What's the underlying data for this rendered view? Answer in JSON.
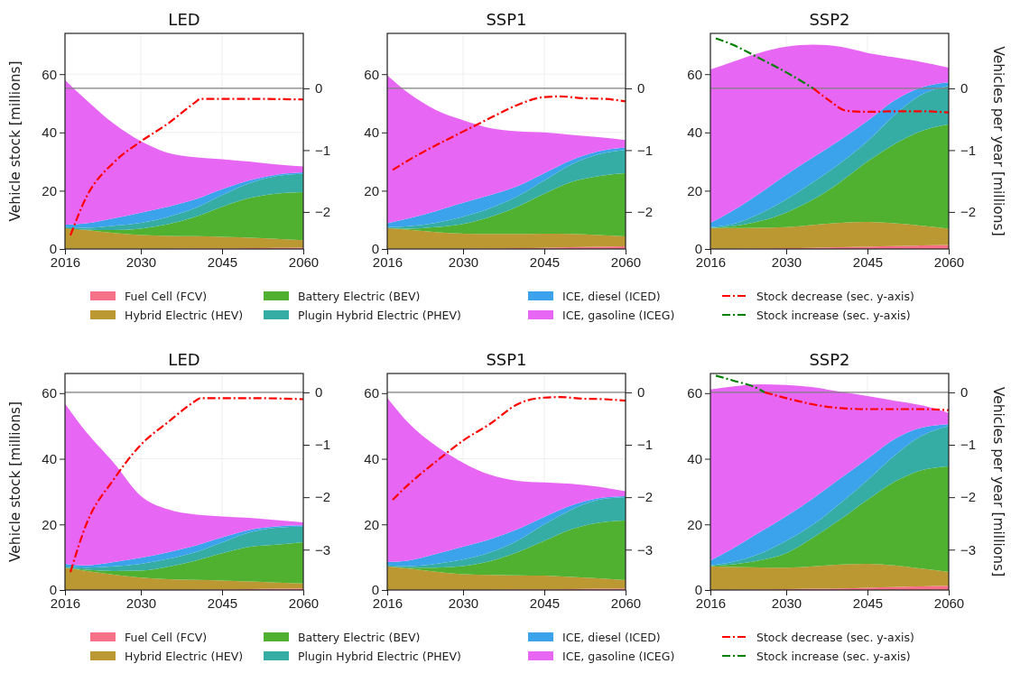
{
  "chart_data": [
    {
      "type": "area",
      "title": "LED",
      "ylabel": "Vehicle stock [millions]",
      "stacked": true,
      "grid": true,
      "line_style": "dashdot",
      "xlim": [
        2016,
        2060
      ],
      "xticks": [
        2016,
        2030,
        2045,
        2060
      ],
      "ylim": [
        0,
        74
      ],
      "yticks": [
        0,
        20,
        40,
        60
      ],
      "y2lim": [
        -2.6,
        0.89
      ],
      "y2ticks": [
        0,
        -1,
        -2
      ],
      "ref_lines": [
        {
          "axis": "y2",
          "value": 0,
          "color": "#808080"
        }
      ],
      "x": [
        2016,
        2020,
        2025,
        2030,
        2035,
        2040,
        2045,
        2050,
        2055,
        2060
      ],
      "series": [
        {
          "color": "#f77189",
          "values": [
            0.1,
            0.1,
            0.1,
            0.1,
            0.1,
            0.2,
            0.2,
            0.3,
            0.4,
            0.5
          ]
        },
        {
          "color": "#bb9832",
          "values": [
            7.1,
            6.4,
            5.4,
            4.7,
            4.4,
            4.2,
            4.0,
            3.6,
            3.1,
            2.5
          ]
        },
        {
          "color": "#50b131",
          "values": [
            0,
            0.1,
            1.0,
            2.2,
            4.0,
            6.6,
            10.3,
            13.6,
            15.5,
            16.5
          ]
        },
        {
          "color": "#36ada4",
          "values": [
            0.3,
            0.7,
            1.5,
            2.0,
            2.5,
            3.0,
            4.0,
            5.0,
            6.0,
            6.3
          ]
        },
        {
          "color": "#3ba3ec",
          "values": [
            0.8,
            1.5,
            2.5,
            3.5,
            3.5,
            3.0,
            2.0,
            1.0,
            0.5,
            0.5
          ]
        },
        {
          "color": "#e866f4",
          "values": [
            49.7,
            42.2,
            32.5,
            24.5,
            18.5,
            14.5,
            10.3,
            6.5,
            3.5,
            2.0
          ]
        },
        {
          "type": "line",
          "axis": "y2",
          "color": "#ff0000",
          "x": [
            2017,
            2020,
            2025,
            2030,
            2035,
            2040,
            2041,
            2050,
            2060
          ],
          "values": [
            -2.38,
            -1.75,
            -1.2,
            -0.86,
            -0.57,
            -0.23,
            -0.17,
            -0.17,
            -0.18
          ]
        }
      ]
    },
    {
      "type": "area",
      "title": "SSP1",
      "stacked": true,
      "grid": true,
      "line_style": "dashdot",
      "xlim": [
        2016,
        2060
      ],
      "xticks": [
        2016,
        2030,
        2045,
        2060
      ],
      "ylim": [
        0,
        74
      ],
      "yticks": [
        0,
        20,
        40,
        60
      ],
      "y2lim": [
        -2.6,
        0.89
      ],
      "y2ticks": [
        0,
        -1,
        -2
      ],
      "ref_lines": [
        {
          "axis": "y2",
          "value": 0,
          "color": "#808080"
        }
      ],
      "x": [
        2016,
        2020,
        2025,
        2030,
        2035,
        2040,
        2045,
        2050,
        2055,
        2060
      ],
      "series": [
        {
          "color": "#f77189",
          "values": [
            0.1,
            0.1,
            0.1,
            0.1,
            0.2,
            0.3,
            0.4,
            0.6,
            0.8,
            0.9
          ]
        },
        {
          "color": "#bb9832",
          "values": [
            7.1,
            6.5,
            5.7,
            5.2,
            5.0,
            4.9,
            4.9,
            4.6,
            4.0,
            3.4
          ]
        },
        {
          "color": "#50b131",
          "values": [
            0,
            0.4,
            1.7,
            3.3,
            5.8,
            9.3,
            13.7,
            17.8,
            20.2,
            21.7
          ]
        },
        {
          "color": "#36ada4",
          "values": [
            0.3,
            0.8,
            1.5,
            2.5,
            3.0,
            3.5,
            4.5,
            6.0,
            7.5,
            8.0
          ]
        },
        {
          "color": "#3ba3ec",
          "values": [
            1.3,
            2.7,
            4.0,
            4.8,
            4.5,
            3.5,
            2.5,
            1.5,
            1.0,
            0.8
          ]
        },
        {
          "color": "#e866f4",
          "values": [
            50.8,
            42.9,
            34.7,
            28.3,
            23.0,
            18.9,
            14.0,
            8.7,
            4.9,
            2.6
          ]
        },
        {
          "type": "line",
          "axis": "y2",
          "color": "#ff0000",
          "x": [
            2017,
            2020,
            2025,
            2030,
            2035,
            2040,
            2045,
            2048,
            2052,
            2056,
            2060
          ],
          "values": [
            -1.32,
            -1.16,
            -0.92,
            -0.7,
            -0.48,
            -0.27,
            -0.14,
            -0.13,
            -0.16,
            -0.17,
            -0.21
          ]
        }
      ]
    },
    {
      "type": "area",
      "title": "SSP2",
      "y2label": "Vehicles per year [millions]",
      "stacked": true,
      "grid": true,
      "legend": "bottom",
      "line_style": "dashdot",
      "xlim": [
        2016,
        2060
      ],
      "xticks": [
        2016,
        2030,
        2045,
        2060
      ],
      "ylim": [
        0,
        74
      ],
      "yticks": [
        0,
        20,
        40,
        60
      ],
      "y2lim": [
        -2.6,
        0.89
      ],
      "y2ticks": [
        0,
        -1,
        -2
      ],
      "ref_lines": [
        {
          "axis": "y2",
          "value": 0,
          "color": "#808080"
        }
      ],
      "x": [
        2016,
        2020,
        2025,
        2030,
        2035,
        2040,
        2045,
        2050,
        2055,
        2060
      ],
      "series": [
        {
          "name": "Fuel Cell (FCV)",
          "color": "#f77189",
          "values": [
            0.1,
            0.1,
            0.2,
            0.3,
            0.4,
            0.6,
            0.8,
            1.0,
            1.2,
            1.4
          ]
        },
        {
          "name": "Hybrid Electric (HEV)",
          "color": "#bb9832",
          "values": [
            7.1,
            7.1,
            7.1,
            7.2,
            7.9,
            8.4,
            8.5,
            7.8,
            6.8,
            5.6
          ]
        },
        {
          "name": "Battery Electric (BEV)",
          "color": "#50b131",
          "values": [
            0,
            0.6,
            2.2,
            5.0,
            8.7,
            14.0,
            20.7,
            27.2,
            32.5,
            35.8
          ]
        },
        {
          "name": "Plugin Hybrid Electric (PHEV)",
          "color": "#36ada4",
          "values": [
            0.3,
            0.7,
            2.5,
            4.5,
            6.0,
            6.5,
            7.0,
            10.0,
            12.5,
            13.2
          ]
        },
        {
          "name": "ICE, diesel (ICED)",
          "color": "#3ba3ec",
          "values": [
            1.5,
            4.5,
            7.0,
            8.5,
            8.5,
            8.0,
            7.0,
            5.0,
            2.5,
            1.2
          ]
        },
        {
          "name": "ICE, gasoline (ICEG)",
          "color": "#e866f4",
          "values": [
            52.6,
            51.2,
            48.3,
            43.9,
            38.6,
            31.9,
            23.3,
            14.8,
            8.7,
            5.0
          ]
        },
        {
          "name": "Stock decrease (sec. y-axis)",
          "type": "line",
          "axis": "y2",
          "color": "#ff0000",
          "x": [
            2035,
            2038,
            2041,
            2045,
            2050,
            2055,
            2060
          ],
          "values": [
            0,
            -0.2,
            -0.36,
            -0.38,
            -0.37,
            -0.37,
            -0.39
          ]
        },
        {
          "name": "Stock increase (sec. y-axis)",
          "type": "line",
          "axis": "y2",
          "color": "#008000",
          "x": [
            2017,
            2020,
            2025,
            2030,
            2035
          ],
          "values": [
            0.81,
            0.71,
            0.49,
            0.26,
            0
          ]
        }
      ]
    },
    {
      "type": "area",
      "title": "LED",
      "ylabel": "Vehicle stock [millions]",
      "stacked": true,
      "grid": true,
      "line_style": "dashdot",
      "xlim": [
        2016,
        2060
      ],
      "xticks": [
        2016,
        2030,
        2045,
        2060
      ],
      "ylim": [
        0,
        66
      ],
      "yticks": [
        0,
        20,
        40,
        60
      ],
      "y2lim": [
        -3.77,
        0.36
      ],
      "y2ticks": [
        0,
        -1,
        -2,
        -3
      ],
      "ref_lines": [
        {
          "axis": "y2",
          "value": 0,
          "color": "#808080"
        }
      ],
      "x": [
        2016,
        2020,
        2025,
        2030,
        2035,
        2040,
        2045,
        2050,
        2055,
        2060
      ],
      "series": [
        {
          "color": "#f77189",
          "values": [
            0.1,
            0.1,
            0.1,
            0.1,
            0.1,
            0.1,
            0.2,
            0.3,
            0.4,
            0.5
          ]
        },
        {
          "color": "#bb9832",
          "values": [
            6.7,
            5.7,
            4.6,
            3.7,
            3.2,
            3.0,
            2.7,
            2.3,
            1.9,
            1.5
          ]
        },
        {
          "color": "#50b131",
          "values": [
            0,
            0.4,
            1.1,
            2.1,
            3.8,
            5.8,
            8.3,
            10.5,
            11.5,
            12.6
          ]
        },
        {
          "color": "#36ada4",
          "values": [
            0.4,
            0.6,
            1.4,
            2.1,
            2.4,
            2.6,
            3.3,
            4.4,
            5.2,
            4.7
          ]
        },
        {
          "color": "#3ba3ec",
          "values": [
            0.8,
            0.7,
            1.3,
            1.8,
            2.0,
            2.0,
            1.5,
            0.8,
            0.4,
            0.4
          ]
        },
        {
          "color": "#e866f4",
          "values": [
            48.8,
            40.5,
            30.3,
            18.9,
            13.1,
            9.5,
            6.4,
            3.7,
            1.9,
            0.9
          ]
        },
        {
          "type": "line",
          "axis": "y2",
          "color": "#ff0000",
          "x": [
            2017,
            2020,
            2025,
            2030,
            2035,
            2040,
            2041,
            2050,
            2060
          ],
          "values": [
            -3.43,
            -2.5,
            -1.66,
            -1.0,
            -0.57,
            -0.17,
            -0.11,
            -0.11,
            -0.13
          ]
        }
      ]
    },
    {
      "type": "area",
      "title": "SSP1",
      "stacked": true,
      "grid": true,
      "line_style": "dashdot",
      "xlim": [
        2016,
        2060
      ],
      "xticks": [
        2016,
        2030,
        2045,
        2060
      ],
      "ylim": [
        0,
        66
      ],
      "yticks": [
        0,
        20,
        40,
        60
      ],
      "y2lim": [
        -3.77,
        0.36
      ],
      "y2ticks": [
        0,
        -1,
        -2,
        -3
      ],
      "ref_lines": [
        {
          "axis": "y2",
          "value": 0,
          "color": "#808080"
        }
      ],
      "x": [
        2016,
        2020,
        2025,
        2030,
        2035,
        2040,
        2045,
        2050,
        2055,
        2060
      ],
      "series": [
        {
          "color": "#f77189",
          "values": [
            0.1,
            0.1,
            0.1,
            0.1,
            0.1,
            0.2,
            0.2,
            0.3,
            0.4,
            0.5
          ]
        },
        {
          "color": "#bb9832",
          "values": [
            7.1,
            6.4,
            5.5,
            4.7,
            4.5,
            4.3,
            4.2,
            3.7,
            3.2,
            2.5
          ]
        },
        {
          "color": "#50b131",
          "values": [
            0,
            0.3,
            1.2,
            2.5,
            4.2,
            7.0,
            10.6,
            14.5,
            16.9,
            18.2
          ]
        },
        {
          "color": "#36ada4",
          "values": [
            0.3,
            0.5,
            1.2,
            2.0,
            2.7,
            3.5,
            5.0,
            6.0,
            7.0,
            7.1
          ]
        },
        {
          "color": "#3ba3ec",
          "values": [
            1.0,
            1.7,
            3.0,
            3.9,
            4.0,
            3.5,
            2.3,
            1.3,
            0.5,
            0.3
          ]
        },
        {
          "color": "#e866f4",
          "values": [
            50.1,
            41.8,
            32.9,
            25.6,
            19.6,
            14.8,
            10.5,
            6.6,
            3.5,
            1.5
          ]
        },
        {
          "type": "line",
          "axis": "y2",
          "color": "#ff0000",
          "x": [
            2017,
            2020,
            2025,
            2030,
            2035,
            2040,
            2042,
            2045,
            2048,
            2052,
            2056,
            2060
          ],
          "values": [
            -2.05,
            -1.75,
            -1.32,
            -0.92,
            -0.6,
            -0.23,
            -0.15,
            -0.1,
            -0.09,
            -0.12,
            -0.13,
            -0.16
          ]
        }
      ]
    },
    {
      "type": "area",
      "title": "SSP2",
      "y2label": "Vehicles per year [millions]",
      "stacked": true,
      "grid": true,
      "legend": "bottom",
      "line_style": "dashdot",
      "xlim": [
        2016,
        2060
      ],
      "xticks": [
        2016,
        2030,
        2045,
        2060
      ],
      "ylim": [
        0,
        66
      ],
      "yticks": [
        0,
        20,
        40,
        60
      ],
      "y2lim": [
        -3.77,
        0.36
      ],
      "y2ticks": [
        0,
        -1,
        -2,
        -3
      ],
      "ref_lines": [
        {
          "axis": "y2",
          "value": 0,
          "color": "#808080"
        }
      ],
      "x": [
        2016,
        2020,
        2025,
        2030,
        2035,
        2040,
        2045,
        2050,
        2055,
        2060
      ],
      "series": [
        {
          "name": "Fuel Cell (FCV)",
          "color": "#f77189",
          "values": [
            0.1,
            0.1,
            0.2,
            0.3,
            0.4,
            0.5,
            0.7,
            0.9,
            1.1,
            1.3
          ]
        },
        {
          "name": "Hybrid Electric (HEV)",
          "color": "#bb9832",
          "values": [
            7.1,
            6.9,
            6.7,
            6.5,
            6.8,
            7.3,
            7.3,
            6.6,
            5.4,
            4.2
          ]
        },
        {
          "name": "Battery Electric (BEV)",
          "color": "#50b131",
          "values": [
            0.1,
            0.8,
            2.1,
            4.4,
            8.8,
            13.7,
            19.5,
            25.5,
            30.0,
            32.2
          ]
        },
        {
          "name": "Plugin Hybrid Electric (PHEV)",
          "color": "#36ada4",
          "values": [
            0.2,
            0.7,
            2.0,
            3.8,
            4.0,
            5.0,
            6.0,
            8.0,
            10.5,
            12.3
          ]
        },
        {
          "name": "ICE, diesel (ICED)",
          "color": "#3ba3ec",
          "values": [
            1.5,
            4.0,
            6.5,
            7.5,
            8.0,
            7.5,
            6.5,
            5.0,
            2.5,
            0.5
          ]
        },
        {
          "name": "ICE, gasoline (ICEG)",
          "color": "#e866f4",
          "values": [
            52.1,
            49.5,
            45.2,
            40.0,
            33.8,
            26.4,
            19.1,
            11.7,
            6.8,
            3.5
          ]
        },
        {
          "name": "Stock decrease (sec. y-axis)",
          "type": "line",
          "axis": "y2",
          "color": "#ff0000",
          "x": [
            2026,
            2030,
            2035,
            2040,
            2045,
            2050,
            2055,
            2060
          ],
          "values": [
            0,
            -0.11,
            -0.23,
            -0.3,
            -0.32,
            -0.32,
            -0.32,
            -0.34
          ]
        },
        {
          "name": "Stock increase (sec. y-axis)",
          "type": "line",
          "axis": "y2",
          "color": "#008000",
          "x": [
            2017,
            2020,
            2025,
            2026
          ],
          "values": [
            0.32,
            0.23,
            0.06,
            0
          ]
        }
      ]
    }
  ]
}
